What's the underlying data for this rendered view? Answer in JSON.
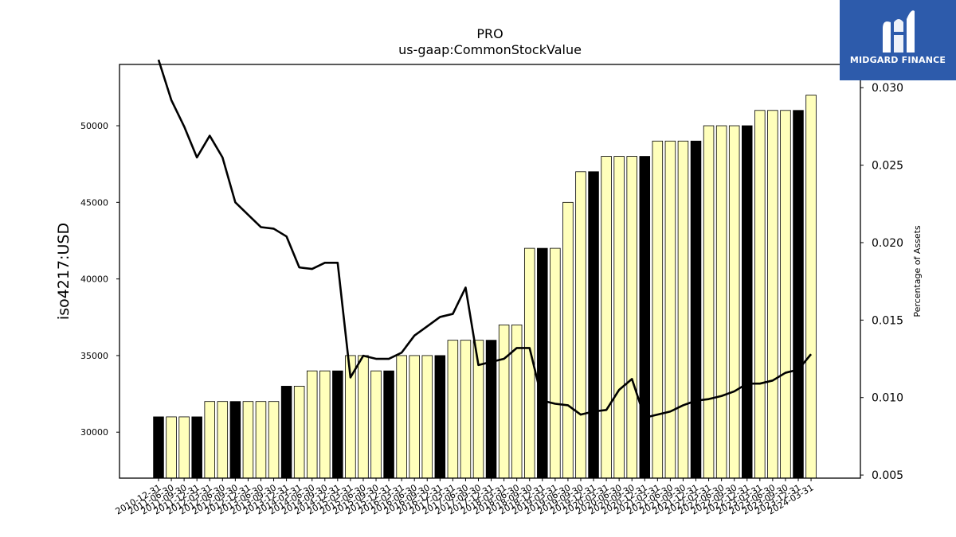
{
  "chart_data": {
    "type": "bar",
    "title": "PRO",
    "subtitle": "us-gaap:CommonStockValue",
    "ylabel": "iso4217:USD",
    "y2label": "Percentage of Assets",
    "ylim": [
      27000,
      54000
    ],
    "y2lim": [
      0.0048,
      0.0315
    ],
    "yticks": [
      30000,
      35000,
      40000,
      45000,
      50000
    ],
    "y2ticks": [
      "0.005",
      "0.010",
      "0.015",
      "0.020",
      "0.025",
      "0.030"
    ],
    "categories": [
      "2010-12-31",
      "2011-06-30",
      "2011-09-30",
      "2011-12-31",
      "2012-03-31",
      "2012-06-30",
      "2012-09-30",
      "2012-12-31",
      "2013-06-30",
      "2013-09-30",
      "2013-12-31",
      "2014-03-31",
      "2014-06-30",
      "2014-09-30",
      "2014-12-31",
      "2015-03-31",
      "2015-06-30",
      "2015-09-30",
      "2015-12-31",
      "2016-03-31",
      "2016-06-30",
      "2016-09-30",
      "2016-12-31",
      "2017-03-31",
      "2017-06-30",
      "2017-09-30",
      "2017-12-31",
      "2018-03-31",
      "2018-06-30",
      "2018-09-30",
      "2018-12-31",
      "2019-03-31",
      "2019-06-30",
      "2019-09-30",
      "2019-12-31",
      "2020-03-31",
      "2020-06-30",
      "2020-09-30",
      "2020-12-31",
      "2021-03-31",
      "2021-06-30",
      "2021-09-30",
      "2021-12-31",
      "2022-03-31",
      "2022-06-30",
      "2022-09-30",
      "2022-12-31",
      "2023-03-31",
      "2023-06-30",
      "2023-09-30",
      "2023-12-31",
      "2024-03-31"
    ],
    "values": [
      31000,
      31000,
      31000,
      31000,
      32000,
      32000,
      32000,
      32000,
      32000,
      32000,
      33000,
      33000,
      34000,
      34000,
      34000,
      35000,
      35000,
      34000,
      34000,
      35000,
      35000,
      35000,
      35000,
      36000,
      36000,
      36000,
      36000,
      37000,
      37000,
      42000,
      42000,
      42000,
      45000,
      47000,
      47000,
      48000,
      48000,
      48000,
      48000,
      49000,
      49000,
      49000,
      49000,
      50000,
      50000,
      50000,
      50000,
      51000,
      51000,
      51000,
      51000,
      52000
    ],
    "bar_kind": [
      "annual",
      "quarter",
      "quarter",
      "annual",
      "quarter",
      "quarter",
      "annual",
      "quarter",
      "quarter",
      "quarter",
      "annual",
      "quarter",
      "quarter",
      "quarter",
      "annual",
      "quarter",
      "quarter",
      "quarter",
      "annual",
      "quarter",
      "quarter",
      "quarter",
      "annual",
      "quarter",
      "quarter",
      "quarter",
      "annual",
      "quarter",
      "quarter",
      "quarter",
      "annual",
      "quarter",
      "quarter",
      "quarter",
      "annual",
      "quarter",
      "quarter",
      "quarter",
      "annual",
      "quarter",
      "quarter",
      "quarter",
      "annual",
      "quarter",
      "quarter",
      "quarter",
      "annual",
      "quarter",
      "quarter",
      "quarter",
      "annual",
      "quarter"
    ],
    "pct_assets": [
      0.0318,
      0.0292,
      0.0275,
      0.0255,
      0.0269,
      0.0255,
      0.0226,
      0.0218,
      0.021,
      0.0209,
      0.0204,
      0.0184,
      0.0183,
      0.0187,
      0.0187,
      0.0113,
      0.0127,
      0.0125,
      0.0125,
      0.0129,
      0.014,
      0.0146,
      0.0152,
      0.0154,
      0.0171,
      0.0121,
      0.0123,
      0.0125,
      0.0132,
      0.0132,
      0.0098,
      0.0096,
      0.0095,
      0.0089,
      0.0091,
      0.0092,
      0.0105,
      0.0112,
      0.0087,
      0.0089,
      0.0091,
      0.0095,
      0.0098,
      0.0099,
      0.0101,
      0.0104,
      0.0109,
      0.0109,
      0.0111,
      0.0116,
      0.0118,
      0.0128
    ],
    "colors": {
      "quarter": "#ffffbb",
      "annual": "#000000",
      "bar_edge": "#000000",
      "line": "#000000"
    },
    "legend": "none",
    "grid": false
  },
  "logo": {
    "text": "MIDGARD FINANCE",
    "background": "#2d5bab"
  }
}
